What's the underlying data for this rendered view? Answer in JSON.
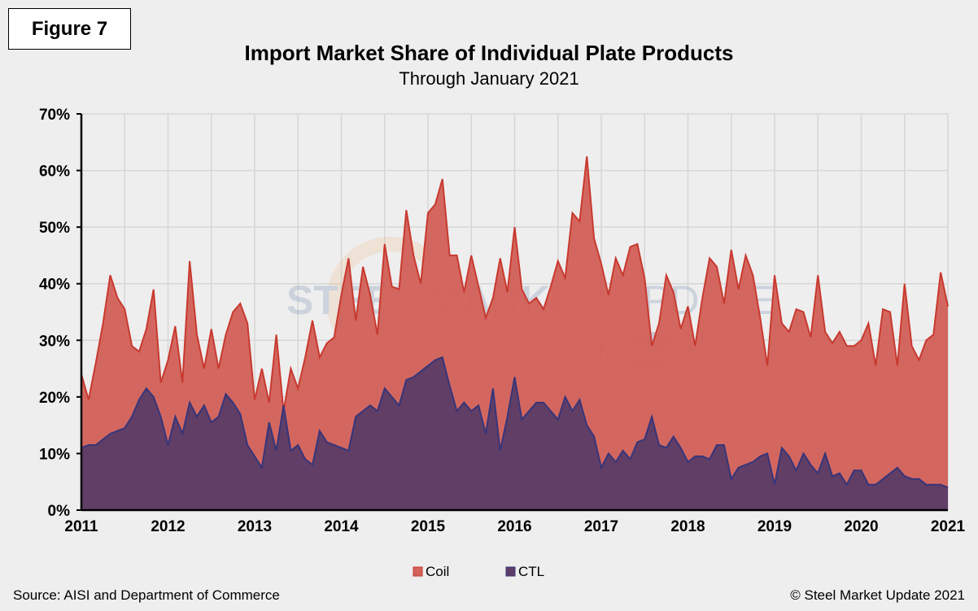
{
  "figure_label": "Figure 7",
  "source": "Source: AISI and Department of Commerce",
  "copyright": "© Steel Market Update 2021",
  "watermark": {
    "line1_bold": "STEEL MARKET",
    "line1_light": "UPDATE",
    "line2": "part of the",
    "badge": "CRU",
    "group": "Group"
  },
  "chart_data": {
    "type": "area",
    "title": "Import Market Share of Individual Plate Products",
    "subtitle": "Through January 2021",
    "xlabel": "",
    "ylabel": "",
    "x_start": "2011-01",
    "x_end": "2021-01",
    "x_frequency": "monthly",
    "x_tick_labels": [
      "2011",
      "2012",
      "2013",
      "2014",
      "2015",
      "2016",
      "2017",
      "2018",
      "2019",
      "2020",
      "2021"
    ],
    "y_tick_labels": [
      "0%",
      "10%",
      "20%",
      "30%",
      "40%",
      "50%",
      "60%",
      "70%"
    ],
    "ylim": [
      0,
      70
    ],
    "grid": true,
    "legend_position": "bottom",
    "series": [
      {
        "name": "Coil",
        "color": "#d2625a",
        "line_color": "#c8392f",
        "values": [
          24,
          19.5,
          26,
          33,
          41.5,
          37.5,
          35.5,
          29,
          28,
          32,
          39,
          22.5,
          26.5,
          32.5,
          22.5,
          44,
          31,
          25,
          32,
          25,
          31,
          35,
          36.5,
          33,
          19.5,
          25,
          19,
          31,
          17.5,
          25,
          21.5,
          27,
          33.5,
          27,
          29.5,
          30.5,
          38,
          44.5,
          33.5,
          43,
          38,
          31,
          47,
          39.5,
          39,
          53,
          45,
          40,
          52.5,
          54,
          58.5,
          45,
          45,
          38.5,
          45,
          39.5,
          34,
          37.5,
          44.5,
          38.5,
          50,
          39,
          36.5,
          37.5,
          35.5,
          39.5,
          44,
          41,
          52.5,
          51,
          62.5,
          48,
          43.5,
          38,
          44.5,
          41.5,
          46.5,
          47,
          41,
          29,
          33,
          41.5,
          38.5,
          32,
          36,
          29,
          37.5,
          44.5,
          43,
          36.5,
          46,
          39,
          45,
          41.5,
          34,
          25.5,
          41.5,
          33,
          31.5,
          35.5,
          35,
          30.5,
          41.5,
          31.5,
          29.5,
          31.5,
          29,
          29,
          30,
          33,
          25.5,
          35.5,
          35,
          25.5,
          40,
          29,
          26.5,
          30,
          31,
          42,
          36
        ]
      },
      {
        "name": "CTL",
        "color": "#5d3d66",
        "line_color": "#36357a",
        "values": [
          11,
          11.5,
          11.5,
          12.5,
          13.5,
          14,
          14.5,
          16.5,
          19.5,
          21.5,
          20,
          16.5,
          11.5,
          16.5,
          13.5,
          19,
          16.5,
          18.5,
          15.5,
          16.5,
          20.5,
          19,
          17,
          11.5,
          9.5,
          7.5,
          15.5,
          10.5,
          18.5,
          10.5,
          11.5,
          9,
          8,
          14,
          12,
          11.5,
          11,
          10.5,
          16.5,
          17.5,
          18.5,
          17.5,
          21.5,
          20,
          18.5,
          23,
          23.5,
          24.5,
          25.5,
          26.5,
          27,
          22,
          17.5,
          19,
          17.5,
          18.5,
          13.5,
          21.5,
          10.5,
          16.5,
          23.5,
          16,
          17.5,
          19,
          19,
          17.5,
          16,
          20,
          17.5,
          19.5,
          15,
          13,
          7.5,
          10,
          8.5,
          10.5,
          9,
          12,
          12.5,
          16.5,
          11.5,
          11,
          13,
          11,
          8.5,
          9.5,
          9.5,
          9,
          11.5,
          11.5,
          5.5,
          7.5,
          8,
          8.5,
          9.5,
          10,
          4.5,
          11,
          9.5,
          7,
          10,
          8,
          6.5,
          10,
          6,
          6.5,
          4.5,
          7,
          7,
          4.5,
          4.5,
          5.5,
          6.5,
          7.5,
          6,
          5.5,
          5.5,
          4.5,
          4.5,
          4.5,
          4
        ]
      }
    ]
  }
}
